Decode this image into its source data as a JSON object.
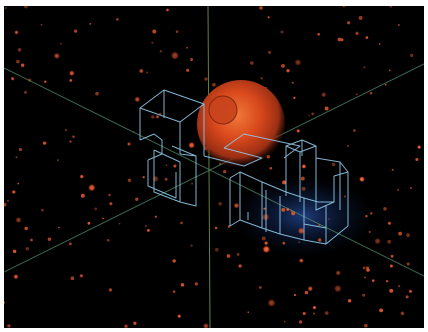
{
  "scene": {
    "description_visible_text": "",
    "colors": {
      "background": "#000000",
      "frame": "#ffffff",
      "axis_vertical": "#7aa34a",
      "axis_diagonal": "#5a8f6a",
      "wireframe": "#8ec8e8",
      "sphere_core": "#e0521f",
      "sphere_glow": "#a8321a",
      "particles": "#d9552a",
      "blue_glow": "#1a3e8a"
    },
    "objects": [
      "coordinate-axes",
      "orange-sphere",
      "wireframe-structure",
      "particle-field",
      "blue-glow"
    ]
  }
}
